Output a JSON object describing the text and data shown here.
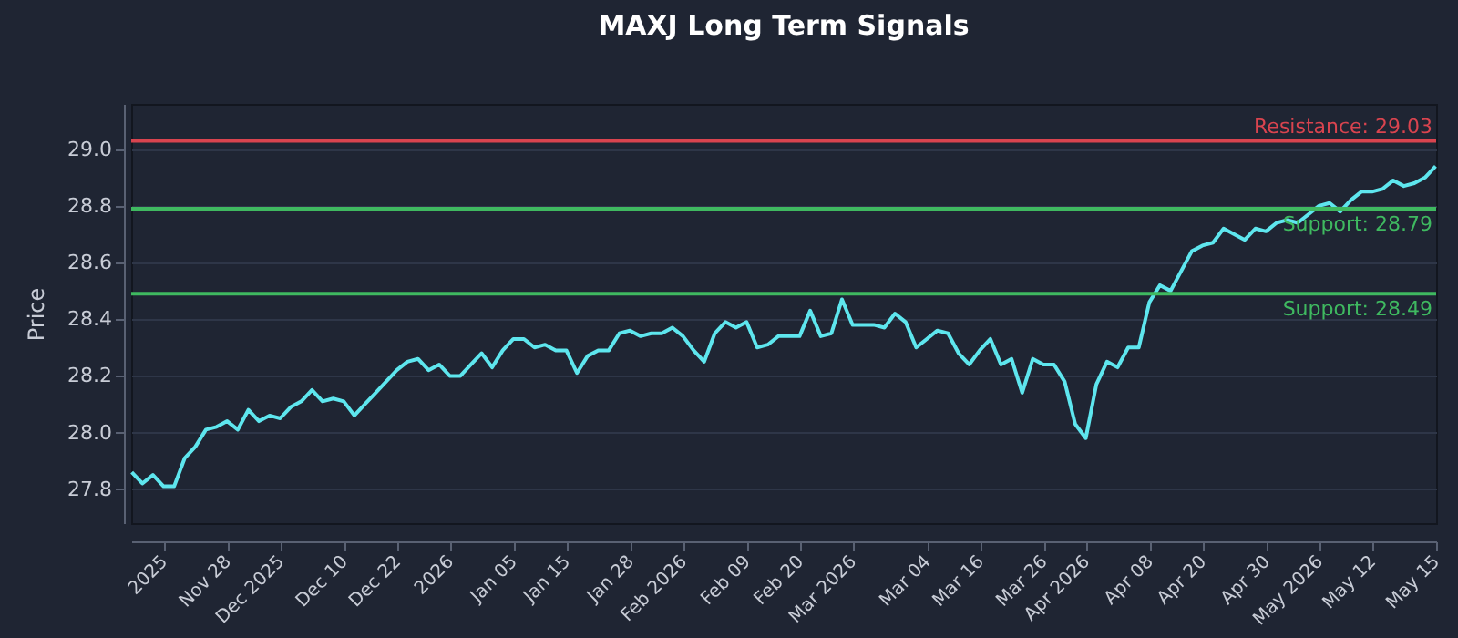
{
  "chart_data": {
    "type": "line",
    "title": "MAXJ Long Term Signals",
    "ylabel": "Price",
    "categories": [
      null,
      null,
      null,
      "2025",
      null,
      null,
      null,
      null,
      null,
      "Nov 28",
      null,
      null,
      null,
      null,
      "Dec 2025",
      null,
      null,
      null,
      null,
      null,
      "Dec 10",
      null,
      null,
      null,
      null,
      "Dec 22",
      null,
      null,
      null,
      null,
      "2026",
      null,
      null,
      null,
      null,
      null,
      "Jan 05",
      null,
      null,
      null,
      null,
      "Jan 15",
      null,
      null,
      null,
      null,
      null,
      "Jan 28",
      null,
      null,
      null,
      null,
      "Feb 2026",
      null,
      null,
      null,
      null,
      null,
      "Feb 09",
      null,
      null,
      null,
      null,
      "Feb 20",
      null,
      null,
      null,
      null,
      "Mar 2026",
      null,
      null,
      null,
      null,
      null,
      null,
      "Mar 04",
      null,
      null,
      null,
      null,
      "Mar 16",
      null,
      null,
      null,
      null,
      null,
      "Mar 26",
      null,
      null,
      null,
      "Apr 2026",
      null,
      null,
      null,
      null,
      null,
      "Apr 08",
      null,
      null,
      null,
      null,
      "Apr 20",
      null,
      null,
      null,
      null,
      null,
      "Apr 30",
      null,
      null,
      null,
      null,
      "May 2026",
      null,
      null,
      null,
      null,
      "May 12",
      null,
      null,
      null,
      null,
      null,
      "May 15"
    ],
    "series": [
      {
        "color": "#5ee6ee",
        "values": [
          27.86,
          27.82,
          27.85,
          27.81,
          27.81,
          27.91,
          27.95,
          28.01,
          28.02,
          28.04,
          28.01,
          28.08,
          28.04,
          28.06,
          28.05,
          28.09,
          28.11,
          28.15,
          28.11,
          28.12,
          28.11,
          28.06,
          28.1,
          28.14,
          28.18,
          28.22,
          28.25,
          28.26,
          28.22,
          28.24,
          28.2,
          28.2,
          28.24,
          28.28,
          28.23,
          28.29,
          28.33,
          28.33,
          28.3,
          28.31,
          28.29,
          28.29,
          28.21,
          28.27,
          28.29,
          28.29,
          28.35,
          28.36,
          28.34,
          28.35,
          28.35,
          28.37,
          28.34,
          28.29,
          28.25,
          28.35,
          28.39,
          28.37,
          28.39,
          28.3,
          28.31,
          28.34,
          28.34,
          28.34,
          28.43,
          28.34,
          28.35,
          28.47,
          28.38,
          28.38,
          28.38,
          28.37,
          28.42,
          28.39,
          28.3,
          28.33,
          28.36,
          28.35,
          28.28,
          28.24,
          28.29,
          28.33,
          28.24,
          28.26,
          28.14,
          28.26,
          28.24,
          28.24,
          28.18,
          28.03,
          27.98,
          28.17,
          28.25,
          28.23,
          28.3,
          28.3,
          28.46,
          28.52,
          28.5,
          28.57,
          28.64,
          28.66,
          28.67,
          28.72,
          28.7,
          28.68,
          28.72,
          28.71,
          28.74,
          28.75,
          28.74,
          28.77,
          28.8,
          28.81,
          28.78,
          28.82,
          28.85,
          28.85,
          28.86,
          28.89,
          28.87,
          28.88,
          28.9,
          28.94
        ]
      }
    ],
    "ylim": [
      27.68,
      29.16
    ],
    "yticks": [
      27.8,
      {
        "value": 28,
        "label": "28.0"
      },
      28.2,
      28.4,
      28.6,
      28.8,
      {
        "value": 29,
        "label": "29.0"
      }
    ],
    "grid": "y",
    "ref_lines": [
      {
        "axis": "y",
        "value": 29.03,
        "label": "Resistance: 29.03",
        "color": "#d9444f"
      },
      {
        "axis": "y",
        "value": 28.79,
        "label": "Support: 28.79",
        "color": "#3fb960"
      },
      {
        "axis": "y",
        "value": 28.49,
        "label": "Support: 28.49",
        "color": "#3fb960"
      }
    ]
  }
}
